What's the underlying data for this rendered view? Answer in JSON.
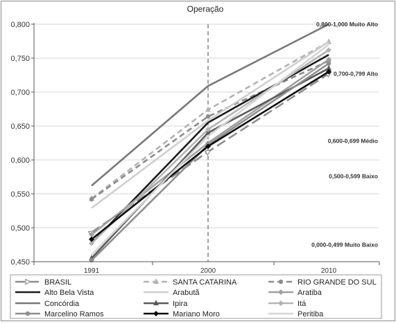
{
  "chart_data": {
    "type": "line",
    "title": "Operação",
    "categories": [
      "1991",
      "2000",
      "2010"
    ],
    "yaxis": {
      "min": 0.45,
      "max": 0.8,
      "ticks": [
        "0,450",
        "0,500",
        "0,550",
        "0,600",
        "0,650",
        "0,700",
        "0,750",
        "0,800"
      ],
      "tick_values": [
        0.45,
        0.5,
        0.55,
        0.6,
        0.65,
        0.7,
        0.75,
        0.8
      ]
    },
    "grid": "horizontal",
    "reference_line": {
      "category": "2000",
      "style": "dashed"
    },
    "bands": [
      {
        "label": "0,800-1,000 Muito Alto",
        "y": 0.8
      },
      {
        "label": "0,700-0,799 Alto",
        "y": 0.727
      },
      {
        "label": "0,600-0,699 Médio",
        "y": 0.628
      },
      {
        "label": "0,500-0,599 Baixo",
        "y": 0.576
      },
      {
        "label": "0,000-0,499 Muito Baixo",
        "y": 0.475
      }
    ],
    "legend_position": "bottom",
    "series": [
      {
        "name": "BRASIL",
        "values": [
          0.493,
          0.612,
          0.727
        ],
        "color": "#8c8c8c",
        "dash": "14,6",
        "marker": "arrow"
      },
      {
        "name": "SANTA CATARINA",
        "values": [
          0.543,
          0.674,
          0.774
        ],
        "color": "#b2b2b2",
        "dash": "8,5",
        "marker": "triangle"
      },
      {
        "name": "RIO GRANDE DO SUL",
        "values": [
          0.542,
          0.664,
          0.746
        ],
        "color": "#8c8c8c",
        "dash": "8,5",
        "marker": "circle"
      },
      {
        "name": "Alto Bela Vista",
        "values": [
          0.477,
          0.655,
          0.755
        ],
        "color": "#1a1a1a",
        "dash": "",
        "marker": "none"
      },
      {
        "name": "Arabutã",
        "values": [
          0.529,
          0.658,
          0.774
        ],
        "color": "#cfcfcf",
        "dash": "",
        "marker": "none"
      },
      {
        "name": "Aratiba",
        "values": [
          0.49,
          0.625,
          0.748
        ],
        "color": "#a0a0a0",
        "dash": "",
        "marker": "diamond"
      },
      {
        "name": "Concórdia",
        "values": [
          0.562,
          0.709,
          0.8
        ],
        "color": "#787878",
        "dash": "",
        "marker": "none"
      },
      {
        "name": "Ipira",
        "values": [
          0.455,
          0.64,
          0.735
        ],
        "color": "#5a5a5a",
        "dash": "",
        "marker": "triangle"
      },
      {
        "name": "Itá",
        "values": [
          0.477,
          0.645,
          0.762
        ],
        "color": "#b4b4b4",
        "dash": "",
        "marker": "diamond"
      },
      {
        "name": "Marcelino Ramos",
        "values": [
          0.452,
          0.622,
          0.742
        ],
        "color": "#8e8e8e",
        "dash": "",
        "marker": "circle"
      },
      {
        "name": "Mariano Moro",
        "values": [
          0.483,
          0.62,
          0.73
        ],
        "color": "#0d0d0d",
        "dash": "",
        "marker": "diamond"
      },
      {
        "name": "Peritiba",
        "values": [
          0.46,
          0.635,
          0.77
        ],
        "color": "#d6d6d6",
        "dash": "",
        "marker": "none"
      }
    ]
  }
}
